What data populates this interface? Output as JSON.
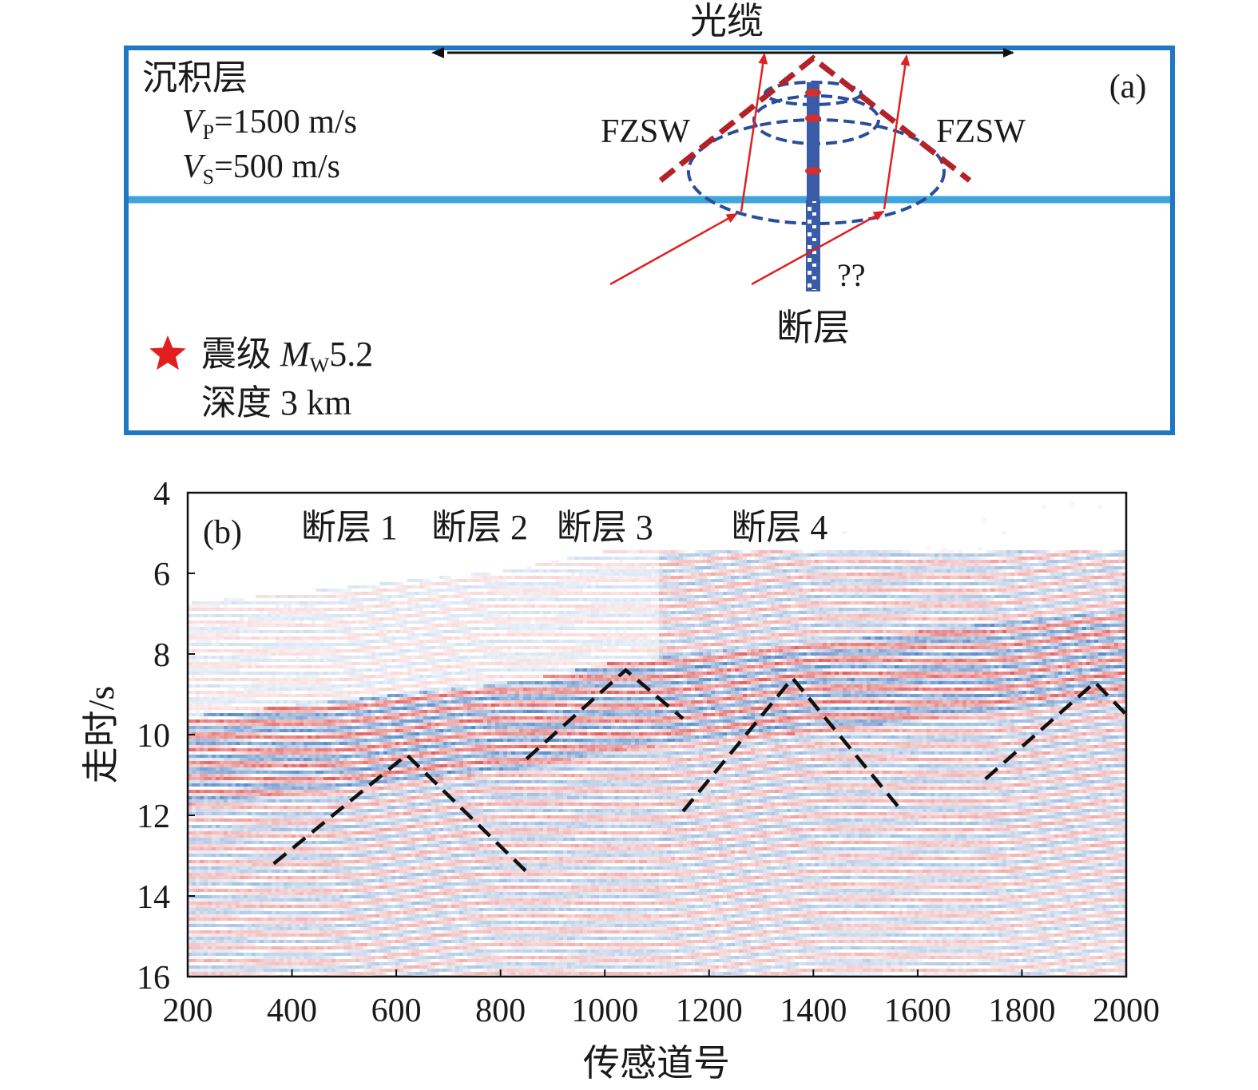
{
  "panel_a": {
    "panel_label": "(a)",
    "cable_label": "光缆",
    "layer_name": "沉积层",
    "vp": {
      "symbol": "V",
      "sub": "P",
      "value": "=1500 m/s"
    },
    "vs": {
      "symbol": "V",
      "sub": "S",
      "value": "=500 m/s"
    },
    "fzsw_left": "FZSW",
    "fzsw_right": "FZSW",
    "question_marks": "??",
    "fault_label": "断层",
    "quake_magnitude": {
      "prefix": "震级 ",
      "symbol": "M",
      "sub": "W",
      "value": "5.2"
    },
    "quake_depth": "深度 3 km",
    "colors": {
      "frame": "#1f78c1",
      "layer_interface": "#3ea6dc",
      "ray": "#e02020",
      "fzsw_wavefront": "#b22228",
      "fault_zone": "#3a5ba8",
      "star": "#e02020"
    }
  },
  "panel_b": {
    "panel_label": "(b)",
    "fault_labels": [
      "断层 1",
      "断层 2",
      "断层 3",
      "断层 4"
    ],
    "colors": {
      "positive_amplitude": "#d62728",
      "negative_amplitude": "#1f5fb4",
      "dashed_picks": "#111111"
    }
  },
  "chart_data": {
    "type": "heatmap",
    "title": "",
    "xlabel": "传感道号",
    "ylabel": "走时/s",
    "xlim": [
      200,
      2000
    ],
    "ylim": [
      16,
      4
    ],
    "x_ticks": [
      200,
      400,
      600,
      800,
      1000,
      1200,
      1400,
      1600,
      1800,
      2000
    ],
    "y_ticks": [
      4,
      6,
      8,
      10,
      12,
      14,
      16
    ],
    "colormap": "seismic (blue-white-red)",
    "annotations": [
      {
        "label": "断层 1",
        "x": 510
      },
      {
        "label": "断层 2",
        "x": 760
      },
      {
        "label": "断层 3",
        "x": 1000
      },
      {
        "label": "断层 4",
        "x": 1335
      }
    ],
    "dashed_lines": [
      {
        "name": "断层 1",
        "points": [
          [
            365,
            13.2
          ],
          [
            620,
            10.5
          ],
          [
            850,
            13.4
          ]
        ]
      },
      {
        "name": "断层 2",
        "points": [
          [
            850,
            10.6
          ],
          [
            1040,
            8.4
          ],
          [
            1150,
            9.6
          ]
        ]
      },
      {
        "name": "断层 3",
        "points": [
          [
            1150,
            11.9
          ],
          [
            1360,
            8.6
          ],
          [
            1570,
            11.9
          ]
        ]
      },
      {
        "name": "断层 4",
        "points": [
          [
            1730,
            11.1
          ],
          [
            1940,
            8.7
          ],
          [
            2000,
            9.5
          ]
        ]
      }
    ],
    "first_arrival": [
      [
        200,
        9.9
      ],
      [
        500,
        9.5
      ],
      [
        800,
        9.1
      ],
      [
        1000,
        8.6
      ],
      [
        1200,
        8.3
      ],
      [
        1400,
        8.1
      ],
      [
        1600,
        7.8
      ],
      [
        1800,
        7.5
      ],
      [
        2000,
        7.3
      ]
    ]
  }
}
